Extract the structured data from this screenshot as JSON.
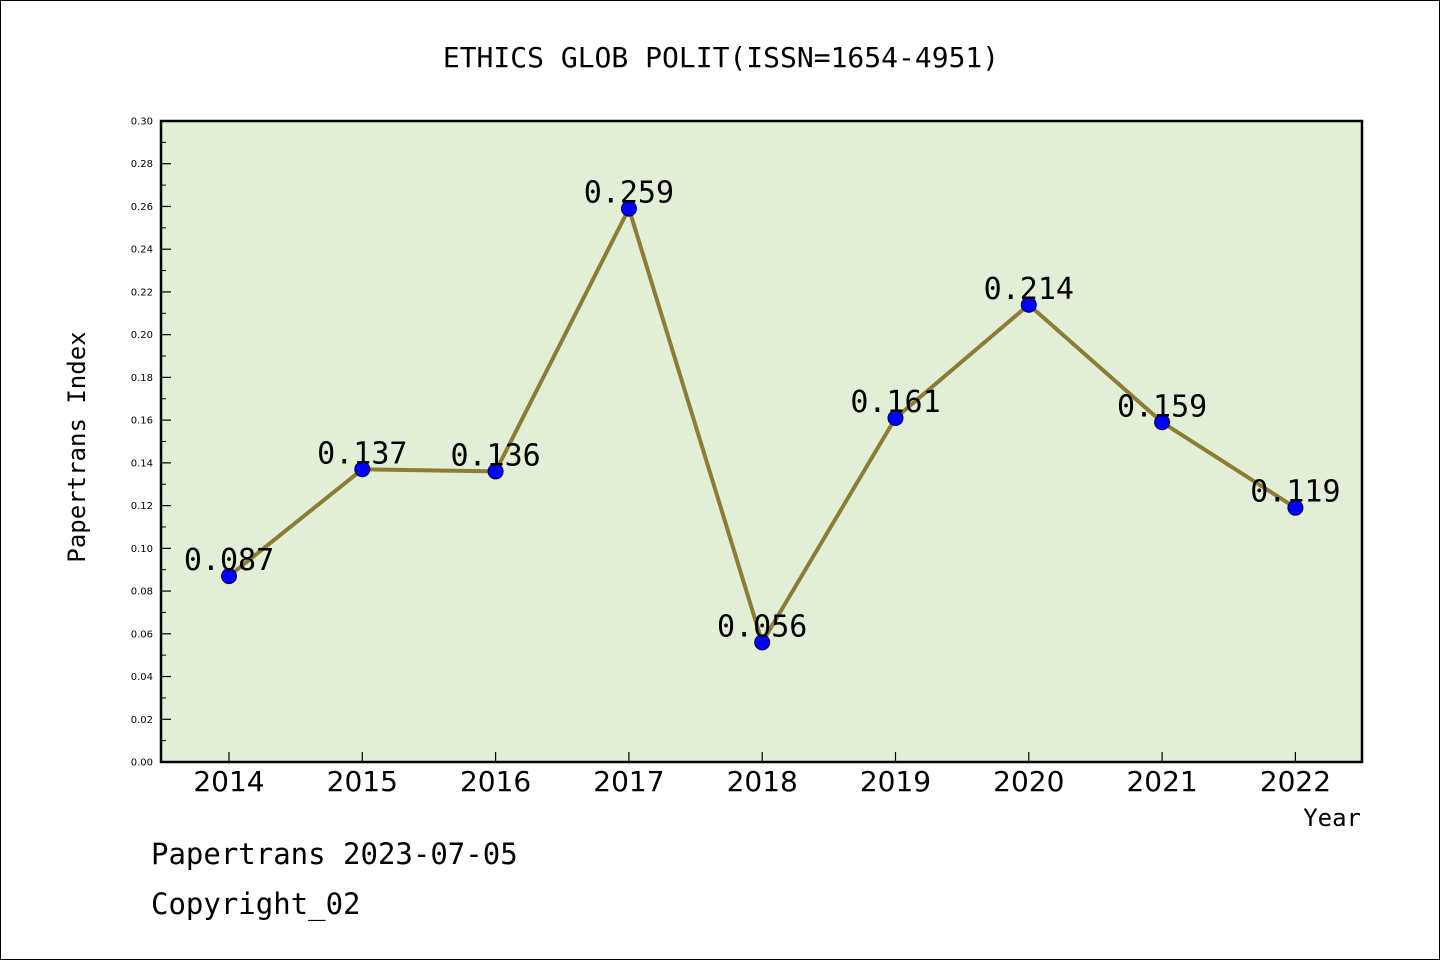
{
  "chart_data": {
    "type": "line",
    "title": "ETHICS GLOB POLIT(ISSN=1654-4951)",
    "xlabel": "Year",
    "ylabel": "Papertrans Index",
    "categories": [
      "2014",
      "2015",
      "2016",
      "2017",
      "2018",
      "2019",
      "2020",
      "2021",
      "2022"
    ],
    "series": [
      {
        "values": [
          0.087,
          0.137,
          0.136,
          0.259,
          0.056,
          0.161,
          0.214,
          0.159,
          0.119
        ],
        "labels": [
          "0.087",
          "0.137",
          "0.136",
          "0.259",
          "0.056",
          "0.161",
          "0.214",
          "0.159",
          "0.119"
        ]
      }
    ],
    "ylim": [
      0,
      0.3
    ],
    "yticks": [
      "0.00",
      "0.02",
      "0.04",
      "0.06",
      "0.08",
      "0.10",
      "0.12",
      "0.14",
      "0.16",
      "0.18",
      "0.20",
      "0.22",
      "0.24",
      "0.26",
      "0.28",
      "0.30"
    ],
    "grid": false,
    "legend": "none",
    "colors": {
      "plot_background": "#e2efd6",
      "line": "#8b7d35",
      "marker": "#0000ff",
      "axes": "#000000"
    }
  },
  "footer": {
    "date_line": "Papertrans 2023-07-05",
    "copyright": "Copyright_02"
  }
}
